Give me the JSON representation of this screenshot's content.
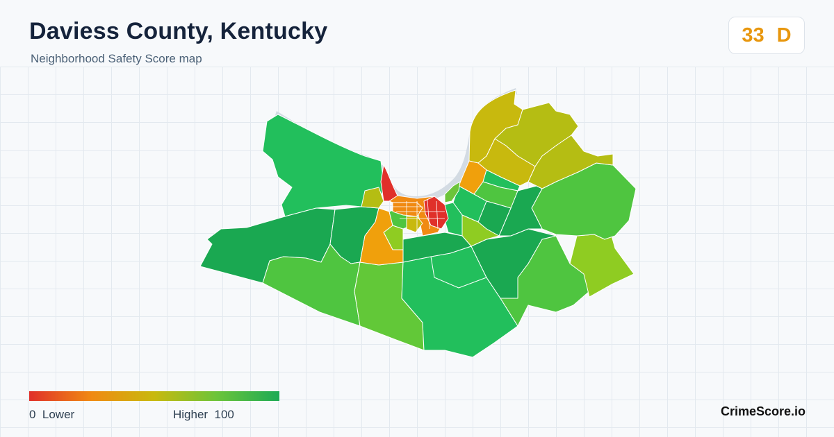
{
  "header": {
    "title": "Daviess County, Kentucky",
    "subtitle": "Neighborhood Safety Score map"
  },
  "score_badge": {
    "score": "33",
    "grade": "D",
    "color": "#e8970e"
  },
  "legend": {
    "low_label": "0  Lower",
    "high_label": "Higher  100",
    "colors": [
      "#e0302a",
      "#f08a12",
      "#c8b90e",
      "#6cc43a",
      "#1daa55"
    ]
  },
  "brand": "CrimeScore.io",
  "colors": {
    "river": "#d3dbe3",
    "grid": "#e3e9ef",
    "background": "#f7f9fb"
  }
}
